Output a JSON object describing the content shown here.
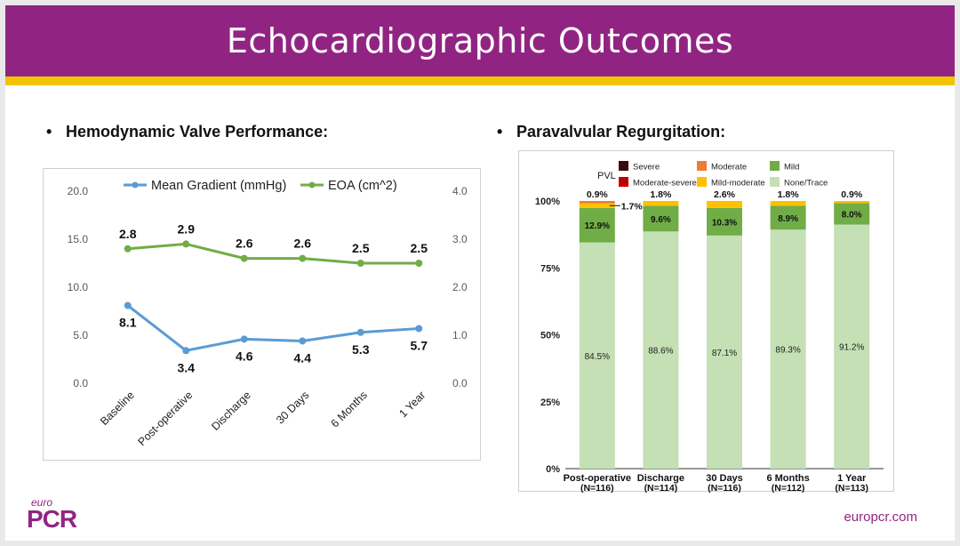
{
  "slide": {
    "title": "Echocardiographic Outcomes",
    "left_heading": "Hemodynamic Valve Performance:",
    "right_heading": "Paravalvular Regurgitation:",
    "bullet": "•",
    "footer_url": "europcr.com",
    "logo_top": "euro",
    "logo_main": "PCR",
    "colors": {
      "banner": "#912483",
      "accent_bar": "#f2c400"
    }
  },
  "chart_data": [
    {
      "type": "line",
      "title": "",
      "categories": [
        "Baseline",
        "Post-operative",
        "Discharge",
        "30 Days",
        "6 Months",
        "1 Year"
      ],
      "series": [
        {
          "name": "Mean Gradient (mmHg)",
          "axis": "left",
          "color": "#5b9bd5",
          "values": [
            8.1,
            3.4,
            4.6,
            4.4,
            5.3,
            5.7
          ],
          "labels": [
            "8.1",
            "3.4",
            "4.6",
            "4.4",
            "5.3",
            "5.7"
          ]
        },
        {
          "name": "EOA (cm^2)",
          "axis": "right",
          "color": "#70ad47",
          "values": [
            2.8,
            2.9,
            2.6,
            2.6,
            2.5,
            2.5
          ],
          "labels": [
            "2.8",
            "2.9",
            "2.6",
            "2.6",
            "2.5",
            "2.5"
          ]
        }
      ],
      "y_left": {
        "min": 0,
        "max": 20,
        "ticks": [
          "0.0",
          "5.0",
          "10.0",
          "15.0",
          "20.0"
        ]
      },
      "y_right": {
        "min": 0,
        "max": 4,
        "ticks": [
          "0.0",
          "1.0",
          "2.0",
          "3.0",
          "4.0"
        ]
      },
      "legend": "top",
      "grid": false
    },
    {
      "type": "bar",
      "stacked": true,
      "title": "",
      "legend_title": "PVL",
      "categories": [
        "Post-operative",
        "Discharge",
        "30 Days",
        "6 Months",
        "1 Year"
      ],
      "category_n": [
        "(N=116)",
        "(N=114)",
        "(N=116)",
        "(N=112)",
        "(N=113)"
      ],
      "series": [
        {
          "name": "None/Trace",
          "color": "#c5e0b4",
          "values": [
            84.5,
            88.6,
            87.1,
            89.3,
            91.2
          ],
          "labels": [
            "84.5%",
            "88.6%",
            "87.1%",
            "89.3%",
            "91.2%"
          ]
        },
        {
          "name": "Mild",
          "color": "#70ad47",
          "values": [
            12.9,
            9.6,
            10.3,
            8.9,
            8.0
          ],
          "labels": [
            "12.9%",
            "9.6%",
            "10.3%",
            "8.9%",
            "8.0%"
          ]
        },
        {
          "name": "Mild-moderate",
          "color": "#ffc000",
          "values": [
            1.7,
            1.8,
            2.6,
            1.8,
            0.9
          ],
          "labels": [
            "1.7%",
            "1.8%",
            "2.6%",
            "1.8%",
            "0.9%"
          ]
        },
        {
          "name": "Moderate",
          "color": "#ed7d31",
          "values": [
            0.9,
            0,
            0,
            0,
            0
          ],
          "labels": [
            "0.9%",
            "",
            "",
            "",
            ""
          ]
        },
        {
          "name": "Moderate-severe",
          "color": "#c00000",
          "values": [
            0,
            0,
            0,
            0,
            0
          ]
        },
        {
          "name": "Severe",
          "color": "#3b0a0a",
          "values": [
            0,
            0,
            0,
            0,
            0
          ]
        }
      ],
      "y_axis": {
        "min": 0,
        "max": 100,
        "ticks": [
          "0%",
          "25%",
          "50%",
          "75%",
          "100%"
        ]
      },
      "legend": "top"
    }
  ]
}
